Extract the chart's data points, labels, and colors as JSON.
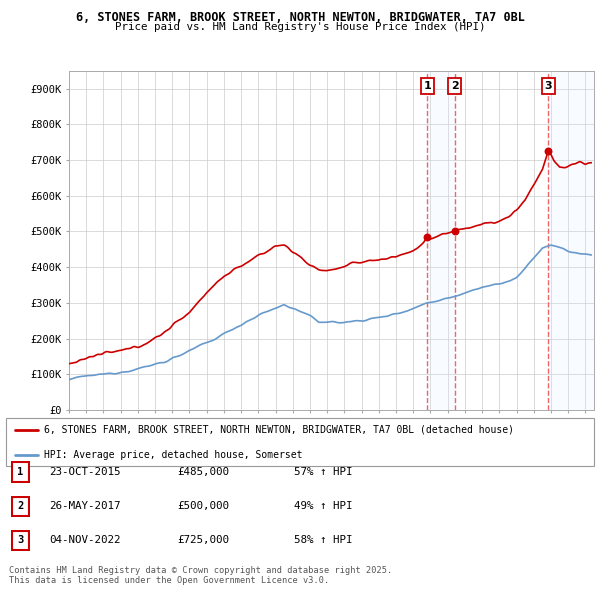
{
  "title1": "6, STONES FARM, BROOK STREET, NORTH NEWTON, BRIDGWATER, TA7 0BL",
  "title2": "Price paid vs. HM Land Registry's House Price Index (HPI)",
  "ylim": [
    0,
    950000
  ],
  "yticks": [
    0,
    100000,
    200000,
    300000,
    400000,
    500000,
    600000,
    700000,
    800000,
    900000
  ],
  "ytick_labels": [
    "£0",
    "£100K",
    "£200K",
    "£300K",
    "£400K",
    "£500K",
    "£600K",
    "£700K",
    "£800K",
    "£900K"
  ],
  "legend_line1": "6, STONES FARM, BROOK STREET, NORTH NEWTON, BRIDGWATER, TA7 0BL (detached house)",
  "legend_line2": "HPI: Average price, detached house, Somerset",
  "sale1_date": "23-OCT-2015",
  "sale1_price": 485000,
  "sale1_hpi": "57% ↑ HPI",
  "sale1_x": 2015.81,
  "sale1_y": 485000,
  "sale2_date": "26-MAY-2017",
  "sale2_price": 500000,
  "sale2_hpi": "49% ↑ HPI",
  "sale2_x": 2017.4,
  "sale2_y": 500000,
  "sale3_date": "04-NOV-2022",
  "sale3_price": 725000,
  "sale3_hpi": "58% ↑ HPI",
  "sale3_x": 2022.84,
  "sale3_y": 725000,
  "footnote1": "Contains HM Land Registry data © Crown copyright and database right 2025.",
  "footnote2": "This data is licensed under the Open Government Licence v3.0.",
  "red_color": "#cc0000",
  "blue_color": "#6699cc",
  "vline_color": "#ee6666",
  "shading_color": "#ddeeff",
  "background_color": "#ffffff",
  "xlim_left": 1995.0,
  "xlim_right": 2025.5
}
